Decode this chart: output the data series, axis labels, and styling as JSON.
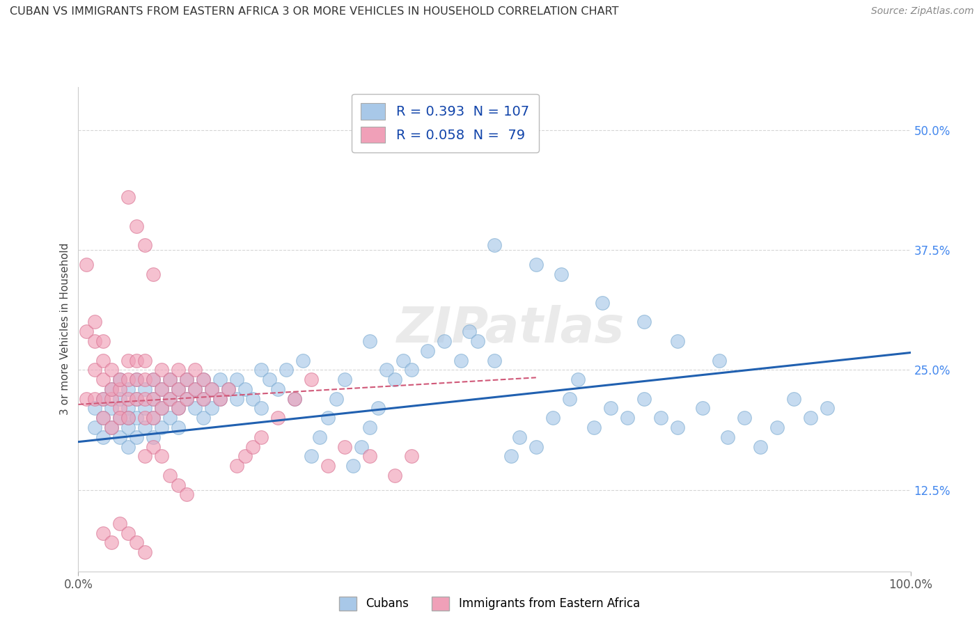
{
  "title": "CUBAN VS IMMIGRANTS FROM EASTERN AFRICA 3 OR MORE VEHICLES IN HOUSEHOLD CORRELATION CHART",
  "source": "Source: ZipAtlas.com",
  "ylabel": "3 or more Vehicles in Household",
  "ytick_labels": [
    "12.5%",
    "25.0%",
    "37.5%",
    "50.0%"
  ],
  "ytick_values": [
    0.125,
    0.25,
    0.375,
    0.5
  ],
  "xmin": 0.0,
  "xmax": 1.0,
  "ymin": 0.04,
  "ymax": 0.545,
  "blue_R": 0.393,
  "blue_N": 107,
  "pink_R": 0.058,
  "pink_N": 79,
  "blue_color": "#a8c8e8",
  "pink_color": "#f0a0b8",
  "blue_edge_color": "#7aaad0",
  "pink_edge_color": "#d87090",
  "blue_line_color": "#2060b0",
  "pink_line_color": "#d05878",
  "title_color": "#333333",
  "source_color": "#888888",
  "legend_text_color": "#1144aa",
  "ytick_color": "#4488ee",
  "xtick_color": "#555555",
  "grid_color": "#cccccc",
  "background_color": "#ffffff",
  "blue_trend_x": [
    0.0,
    1.0
  ],
  "blue_trend_y": [
    0.175,
    0.268
  ],
  "pink_trend_x": [
    0.0,
    0.55
  ],
  "pink_trend_y": [
    0.214,
    0.242
  ],
  "blue_scatter_x": [
    0.02,
    0.02,
    0.03,
    0.03,
    0.03,
    0.04,
    0.04,
    0.04,
    0.05,
    0.05,
    0.05,
    0.05,
    0.06,
    0.06,
    0.06,
    0.06,
    0.06,
    0.07,
    0.07,
    0.07,
    0.07,
    0.08,
    0.08,
    0.08,
    0.09,
    0.09,
    0.09,
    0.09,
    0.1,
    0.1,
    0.1,
    0.11,
    0.11,
    0.11,
    0.12,
    0.12,
    0.12,
    0.13,
    0.13,
    0.14,
    0.14,
    0.15,
    0.15,
    0.15,
    0.16,
    0.16,
    0.17,
    0.17,
    0.18,
    0.19,
    0.19,
    0.2,
    0.21,
    0.22,
    0.22,
    0.23,
    0.24,
    0.25,
    0.26,
    0.27,
    0.28,
    0.29,
    0.3,
    0.31,
    0.32,
    0.33,
    0.34,
    0.35,
    0.35,
    0.36,
    0.37,
    0.38,
    0.39,
    0.4,
    0.42,
    0.44,
    0.46,
    0.47,
    0.48,
    0.5,
    0.52,
    0.53,
    0.55,
    0.57,
    0.59,
    0.6,
    0.62,
    0.64,
    0.66,
    0.68,
    0.7,
    0.72,
    0.75,
    0.78,
    0.8,
    0.82,
    0.84,
    0.86,
    0.88,
    0.9,
    0.5,
    0.55,
    0.58,
    0.63,
    0.68,
    0.72,
    0.77
  ],
  "blue_scatter_y": [
    0.21,
    0.19,
    0.2,
    0.22,
    0.18,
    0.21,
    0.19,
    0.23,
    0.2,
    0.18,
    0.22,
    0.24,
    0.19,
    0.21,
    0.17,
    0.23,
    0.2,
    0.2,
    0.22,
    0.18,
    0.24,
    0.19,
    0.21,
    0.23,
    0.2,
    0.18,
    0.22,
    0.24,
    0.21,
    0.19,
    0.23,
    0.2,
    0.22,
    0.24,
    0.21,
    0.19,
    0.23,
    0.22,
    0.24,
    0.21,
    0.23,
    0.2,
    0.22,
    0.24,
    0.21,
    0.23,
    0.22,
    0.24,
    0.23,
    0.22,
    0.24,
    0.23,
    0.22,
    0.25,
    0.21,
    0.24,
    0.23,
    0.25,
    0.22,
    0.26,
    0.16,
    0.18,
    0.2,
    0.22,
    0.24,
    0.15,
    0.17,
    0.19,
    0.28,
    0.21,
    0.25,
    0.24,
    0.26,
    0.25,
    0.27,
    0.28,
    0.26,
    0.29,
    0.28,
    0.26,
    0.16,
    0.18,
    0.17,
    0.2,
    0.22,
    0.24,
    0.19,
    0.21,
    0.2,
    0.22,
    0.2,
    0.19,
    0.21,
    0.18,
    0.2,
    0.17,
    0.19,
    0.22,
    0.2,
    0.21,
    0.38,
    0.36,
    0.35,
    0.32,
    0.3,
    0.28,
    0.26
  ],
  "pink_scatter_x": [
    0.01,
    0.01,
    0.01,
    0.02,
    0.02,
    0.02,
    0.02,
    0.03,
    0.03,
    0.03,
    0.03,
    0.03,
    0.04,
    0.04,
    0.04,
    0.04,
    0.05,
    0.05,
    0.05,
    0.05,
    0.06,
    0.06,
    0.06,
    0.06,
    0.07,
    0.07,
    0.07,
    0.08,
    0.08,
    0.08,
    0.08,
    0.09,
    0.09,
    0.09,
    0.1,
    0.1,
    0.1,
    0.11,
    0.11,
    0.12,
    0.12,
    0.12,
    0.13,
    0.13,
    0.14,
    0.14,
    0.15,
    0.15,
    0.16,
    0.17,
    0.18,
    0.19,
    0.2,
    0.21,
    0.22,
    0.24,
    0.26,
    0.28,
    0.3,
    0.32,
    0.35,
    0.38,
    0.4,
    0.09,
    0.1,
    0.11,
    0.12,
    0.13,
    0.08,
    0.06,
    0.07,
    0.08,
    0.09,
    0.03,
    0.04,
    0.05,
    0.06,
    0.07,
    0.08
  ],
  "pink_scatter_y": [
    0.36,
    0.29,
    0.22,
    0.25,
    0.28,
    0.22,
    0.3,
    0.22,
    0.24,
    0.26,
    0.28,
    0.2,
    0.22,
    0.25,
    0.19,
    0.23,
    0.21,
    0.23,
    0.2,
    0.24,
    0.22,
    0.24,
    0.2,
    0.26,
    0.22,
    0.24,
    0.26,
    0.22,
    0.24,
    0.2,
    0.26,
    0.22,
    0.24,
    0.2,
    0.23,
    0.25,
    0.21,
    0.24,
    0.22,
    0.23,
    0.25,
    0.21,
    0.24,
    0.22,
    0.23,
    0.25,
    0.24,
    0.22,
    0.23,
    0.22,
    0.23,
    0.15,
    0.16,
    0.17,
    0.18,
    0.2,
    0.22,
    0.24,
    0.15,
    0.17,
    0.16,
    0.14,
    0.16,
    0.17,
    0.16,
    0.14,
    0.13,
    0.12,
    0.16,
    0.43,
    0.4,
    0.38,
    0.35,
    0.08,
    0.07,
    0.09,
    0.08,
    0.07,
    0.06
  ]
}
